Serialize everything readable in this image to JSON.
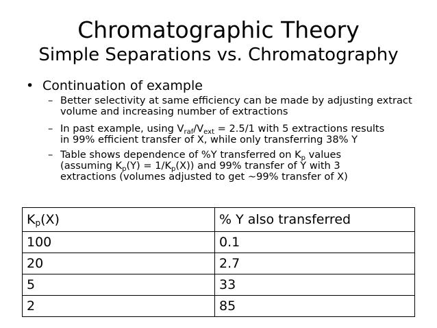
{
  "slide": {
    "title": "Chromatographic Theory",
    "subtitle": "Simple Separations vs. Chromatography",
    "bullet": {
      "marker": "•",
      "text": "Continuation of example"
    },
    "subbullets": [
      {
        "marker": "–",
        "text": "Better selectivity at same efficiency can be made by adjusting extract volume and increasing number of extractions"
      },
      {
        "marker": "–",
        "prefix": "In past example, using V",
        "sub_a": "raf",
        "slash": "/V",
        "sub_b": "ext",
        "line1_end": " = 2.5/1 with 5 extractions results",
        "line2": "in 99% efficient transfer of X, while only transferring 38% Y"
      },
      {
        "marker": "–",
        "part1": "Table shows dependence of %Y transferred on K",
        "sub_p1": "p",
        "part2": " values",
        "part3": "(assuming K",
        "sub_p2": "p",
        "part4": "(Y) = 1/K",
        "sub_p3": "p",
        "part5": "(X)) and 99% transfer of Y with 3",
        "line3": "extractions (volumes adjusted to get ~99% transfer of X)"
      }
    ]
  },
  "table": {
    "header_col1_k": "K",
    "header_col1_sub": "p",
    "header_col1_rest": "(X)",
    "header_col2": "% Y also transferred",
    "rows": [
      [
        "100",
        "0.1"
      ],
      [
        "20",
        "2.7"
      ],
      [
        "5",
        "33"
      ],
      [
        "2",
        "85"
      ]
    ]
  }
}
